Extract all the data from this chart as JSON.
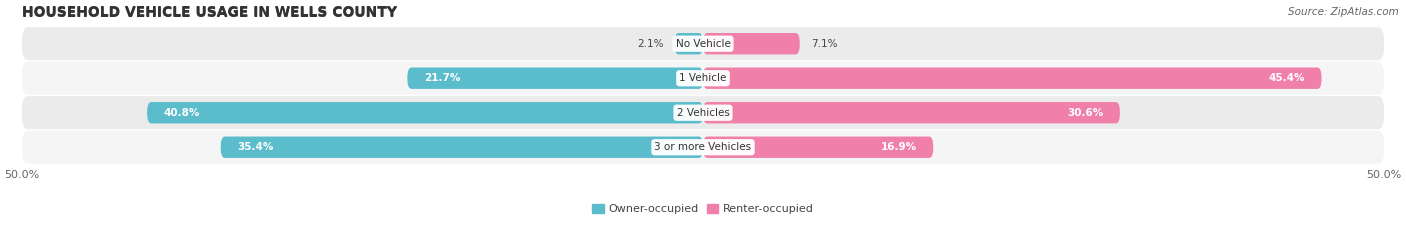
{
  "title": "HOUSEHOLD VEHICLE USAGE IN WELLS COUNTY",
  "source": "Source: ZipAtlas.com",
  "categories": [
    "No Vehicle",
    "1 Vehicle",
    "2 Vehicles",
    "3 or more Vehicles"
  ],
  "owner_values": [
    2.1,
    21.7,
    40.8,
    35.4
  ],
  "renter_values": [
    7.1,
    45.4,
    30.6,
    16.9
  ],
  "owner_color": "#5bbccc",
  "renter_color": "#f07faa",
  "row_bg_colors": [
    "#ebebeb",
    "#f5f5f5",
    "#ebebeb",
    "#f5f5f5"
  ],
  "xlim": [
    -50,
    50
  ],
  "owner_label": "Owner-occupied",
  "renter_label": "Renter-occupied",
  "title_fontsize": 10,
  "source_fontsize": 7.5,
  "label_fontsize": 7.5,
  "cat_fontsize": 7.5,
  "tick_fontsize": 8,
  "legend_fontsize": 8,
  "bar_height": 0.62
}
